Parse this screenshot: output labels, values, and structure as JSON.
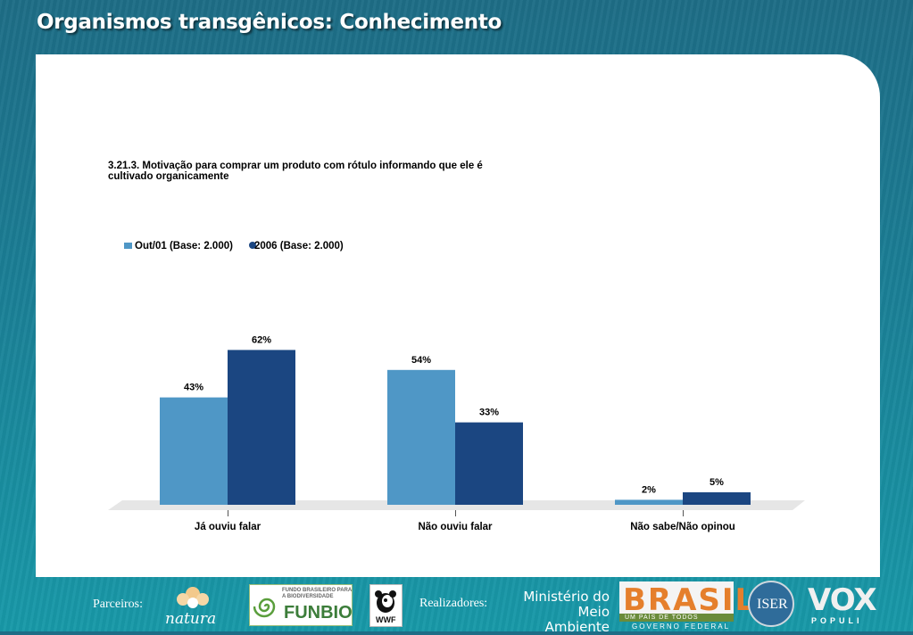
{
  "slide": {
    "title": "Organismos transgênicos: Conhecimento"
  },
  "chart_data": {
    "type": "bar",
    "title": "3.21.3. Motivação para comprar um produto com rótulo informando que ele é cultivado organicamente",
    "title_lines": [
      "3.21.3. Motivação para comprar um produto com rótulo informando que ele é",
      "cultivado organicamente"
    ],
    "categories": [
      "Já ouviu falar",
      "Não ouviu falar",
      "Não sabe/Não opinou"
    ],
    "series": [
      {
        "name": "Out/01 (Base: 2.000)",
        "values": [
          43,
          54,
          2
        ],
        "labels": [
          "43%",
          "54%",
          "2%"
        ],
        "color": "#4f97c6"
      },
      {
        "name": "2006 (Base: 2.000)",
        "values": [
          62,
          33,
          5
        ],
        "labels": [
          "62%",
          "33%",
          "5%"
        ],
        "color": "#1b4681"
      }
    ],
    "unit": "%",
    "ylim": [
      0,
      100
    ],
    "legend": "top-left",
    "grid": false
  },
  "footer": {
    "partners_label": "Parceiros:",
    "realizers_label": "Realizadores:",
    "logos": {
      "natura": "natura",
      "funbio_small": "FUNDO BRASILEIRO PARA A BIODIVERSIDADE",
      "funbio": "FUNBIO",
      "wwf": "WWF",
      "ministerio_1": "Ministério do",
      "ministerio_2": "Meio Ambiente",
      "brasil": "BRASIL",
      "brasil_tagline": "UM PAÍS DE TODOS",
      "brasil_gov": "GOVERNO FEDERAL",
      "iser": "ISER",
      "vox": "VOX",
      "vox_sub": "POPULI"
    }
  }
}
